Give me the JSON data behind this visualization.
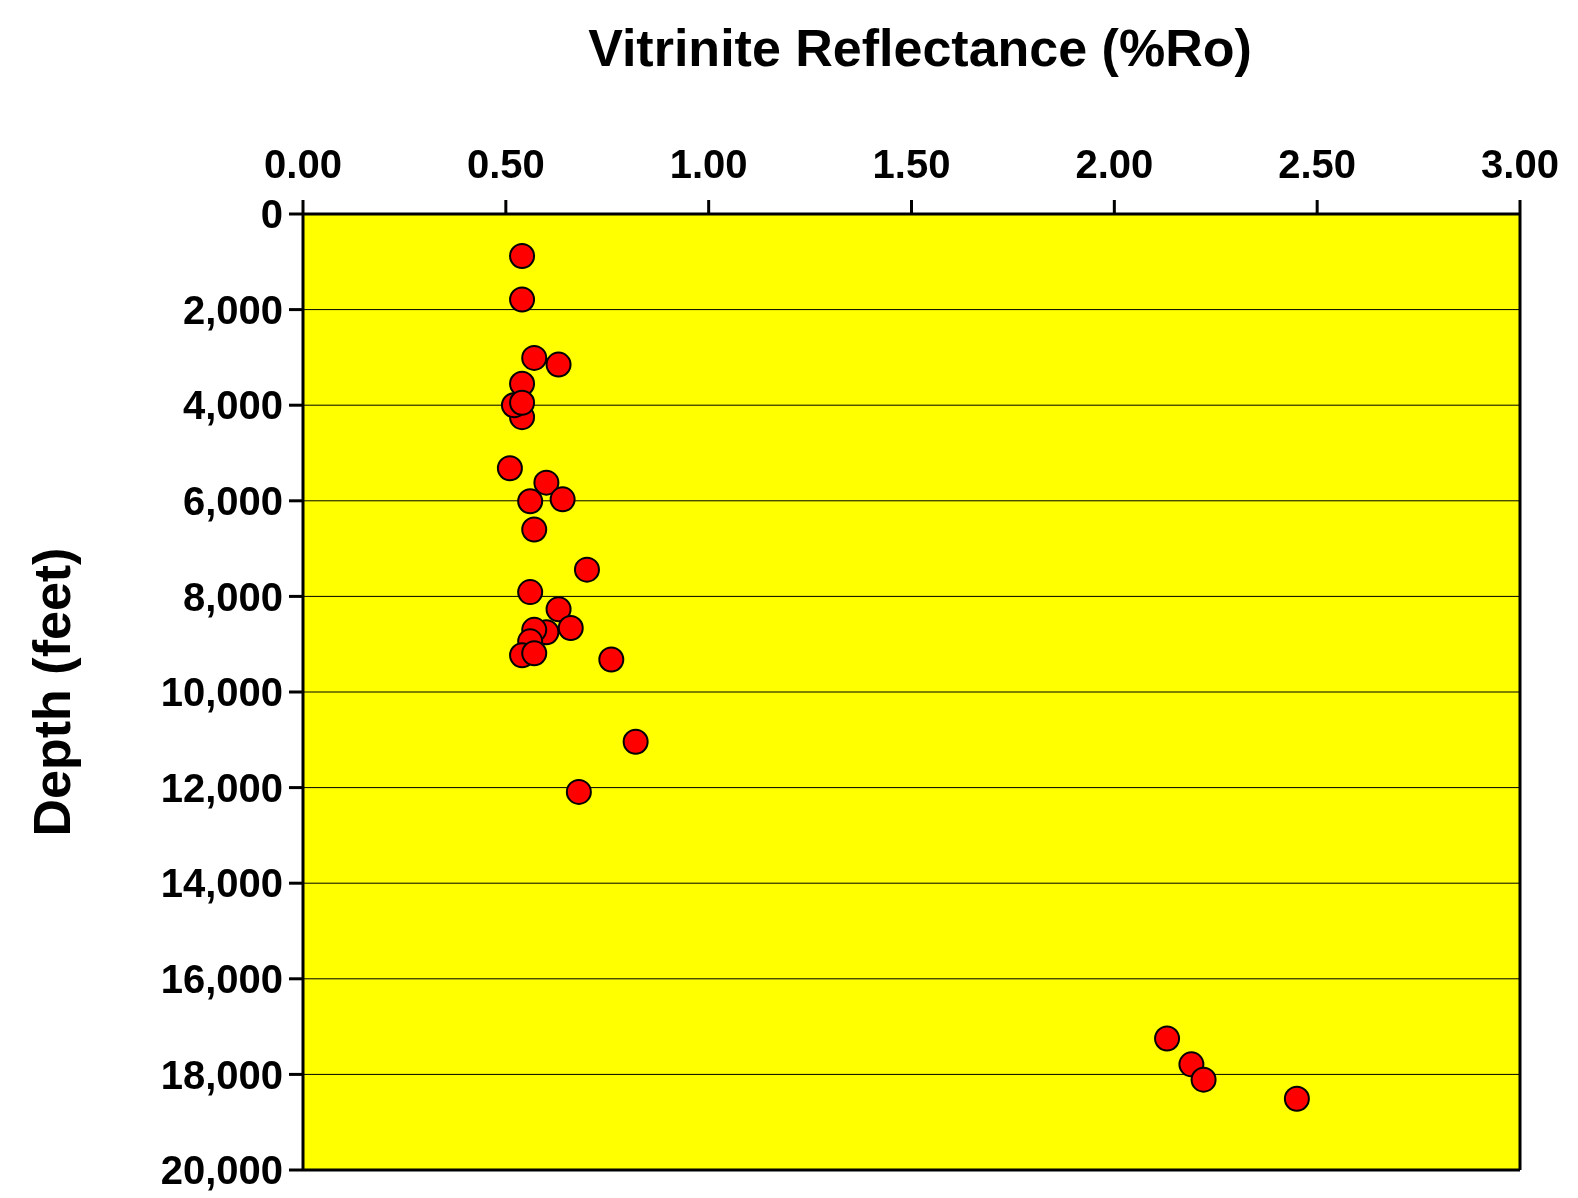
{
  "chart_data": {
    "type": "scatter",
    "title": "Vitrinite Reflectance (%Ro)",
    "ylabel": "Depth (feet)",
    "x": [
      0.54,
      0.54,
      0.57,
      0.63,
      0.54,
      0.54,
      0.52,
      0.54,
      0.51,
      0.6,
      0.56,
      0.64,
      0.57,
      0.7,
      0.56,
      0.63,
      0.66,
      0.6,
      0.57,
      0.56,
      0.54,
      0.57,
      0.76,
      0.82,
      0.68,
      2.13,
      2.19,
      2.22,
      2.45
    ],
    "values": [
      880,
      1790,
      3010,
      3150,
      3550,
      4250,
      4000,
      3950,
      5320,
      5620,
      6010,
      5970,
      6600,
      7440,
      7910,
      8270,
      8660,
      8750,
      8700,
      8940,
      9230,
      9190,
      9320,
      11040,
      12090,
      17250,
      17790,
      18110,
      18510
    ],
    "color": "#ff0000",
    "marker": "circle",
    "grid": "y",
    "xlim": [
      0,
      3
    ],
    "xticks": [
      {
        "value": 0,
        "label": "0.00"
      },
      {
        "value": 0.5,
        "label": "0.50"
      },
      {
        "value": 1,
        "label": "1.00"
      },
      {
        "value": 1.5,
        "label": "1.50"
      },
      {
        "value": 2,
        "label": "2.00"
      },
      {
        "value": 2.5,
        "label": "2.50"
      },
      {
        "value": 3,
        "label": "3.00"
      }
    ],
    "ylim": [
      20000,
      0
    ],
    "yticks": [
      0,
      {
        "value": 2000,
        "label": "2,000"
      },
      {
        "value": 4000,
        "label": "4,000"
      },
      {
        "value": 6000,
        "label": "6,000"
      },
      {
        "value": 8000,
        "label": "8,000"
      },
      {
        "value": 10000,
        "label": "10,000"
      },
      {
        "value": 12000,
        "label": "12,000"
      },
      {
        "value": 14000,
        "label": "14,000"
      },
      {
        "value": 16000,
        "label": "16,000"
      },
      {
        "value": 18000,
        "label": "18,000"
      },
      {
        "value": 20000,
        "label": "20,000"
      }
    ]
  }
}
